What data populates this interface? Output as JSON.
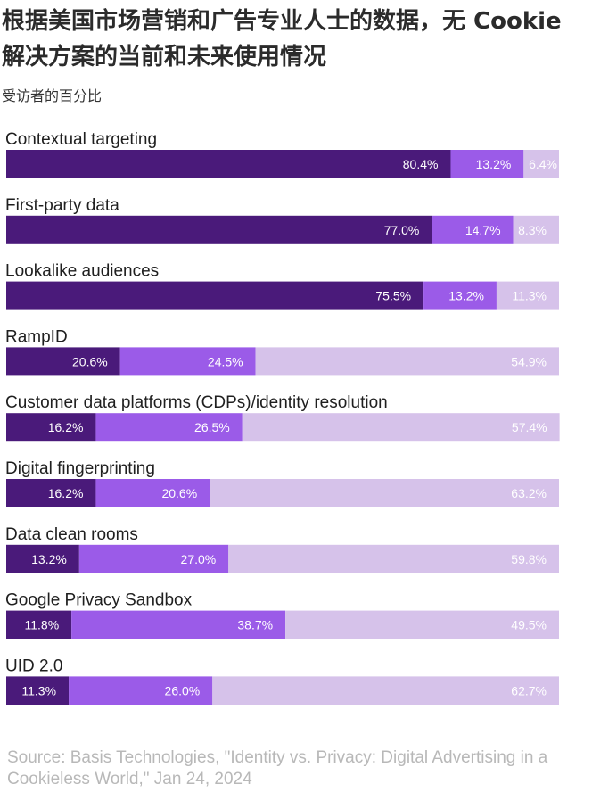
{
  "header": {
    "title": "根据美国市场营销和广告专业人士的数据，无 Cookie 解决方案的当前和未来使用情况",
    "subtitle": "受访者的百分比"
  },
  "footer": {
    "source": "Source: Basis Technologies, \"Identity vs. Privacy: Digital Advertising in a Cookieless World,\" Jan 24, 2024"
  },
  "colors": {
    "series1": "#4a1a7a",
    "series2": "#9b5be8",
    "series3": "#d6c2ea"
  },
  "chart_data": {
    "type": "bar",
    "orientation": "horizontal",
    "stacked": true,
    "categories": [
      "Contextual targeting",
      "First-party data",
      "Lookalike audiences",
      "RampID",
      "Customer data platforms (CDPs)/identity resolution",
      "Digital fingerprinting",
      "Data clean rooms",
      "Google Privacy Sandbox",
      "UID 2.0"
    ],
    "series": [
      {
        "values": [
          80.4,
          77.0,
          75.5,
          20.6,
          16.2,
          16.2,
          13.2,
          11.8,
          11.3
        ]
      },
      {
        "values": [
          13.2,
          14.7,
          13.2,
          24.5,
          26.5,
          20.6,
          27.0,
          38.7,
          26.0
        ]
      },
      {
        "values": [
          6.4,
          8.3,
          11.3,
          54.9,
          57.4,
          63.2,
          59.8,
          49.5,
          62.7
        ]
      }
    ],
    "value_suffix": "%",
    "xlim": [
      0,
      100
    ]
  }
}
